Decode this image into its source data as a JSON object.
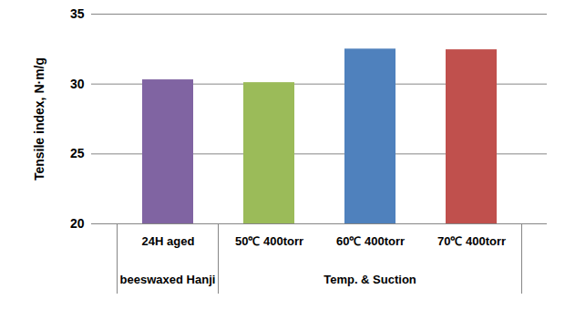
{
  "chart_data": {
    "type": "bar",
    "ylabel": "Tensile index, N·m/g",
    "categories": [
      "24H aged",
      "50℃ 400torr",
      "60℃ 400torr",
      "70℃ 400torr"
    ],
    "values": [
      30.3,
      30.1,
      32.5,
      32.45
    ],
    "colors": [
      "#8064a2",
      "#9bbb59",
      "#4f81bd",
      "#c0504d"
    ],
    "groups": [
      {
        "label": "beeswaxed Hanji",
        "categories": [
          "24H aged"
        ]
      },
      {
        "label": "Temp. & Suction",
        "categories": [
          "50℃ 400torr",
          "60℃ 400torr",
          "70℃ 400torr"
        ]
      }
    ],
    "ylim": [
      20,
      35
    ],
    "yticks": [
      20,
      25,
      30,
      35
    ],
    "grid": true
  }
}
